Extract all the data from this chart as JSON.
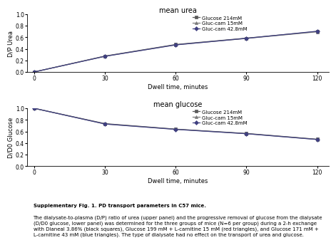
{
  "title1": "mean urea",
  "title2": "mean glucose",
  "xlabel": "Dwell time, minutes",
  "ylabel1": "D/P Urea",
  "ylabel2": "D/D0 Glucose",
  "x": [
    0,
    30,
    60,
    90,
    120
  ],
  "urea": {
    "series1": [
      0.0,
      0.275,
      0.475,
      0.585,
      0.7
    ],
    "series2": [
      0.0,
      0.272,
      0.47,
      0.58,
      0.695
    ],
    "series3": [
      0.0,
      0.27,
      0.468,
      0.582,
      0.705
    ]
  },
  "glucose": {
    "series1": [
      1.0,
      0.735,
      0.64,
      0.565,
      0.465
    ],
    "series2": [
      1.0,
      0.73,
      0.638,
      0.562,
      0.462
    ],
    "series3": [
      1.0,
      0.728,
      0.635,
      0.56,
      0.46
    ]
  },
  "legend_labels": [
    "Glucose 214mM",
    "Gluc-cam 15mM",
    "Gluc-cam 42.8mM"
  ],
  "colors": [
    "#5a5a5a",
    "#7a7a7a",
    "#404080"
  ],
  "markers": [
    "s",
    "^",
    "D"
  ],
  "marker_size": 3,
  "line_width": 0.9,
  "caption_bold": "Supplementary Fig. 1. PD transport parameters in C57 mice.",
  "caption_text": "The dialysate-to-plasma (D/P) ratio of urea (upper panel) and the progressive removal of glucose from the dialysate\n(D/D0 glucose, lower panel) was determined for the three groups of mice (N=6 per group) during a 2-h exchange\nwith Dianeal 3.86% (black squares), Glucose 199 mM + L-carnitine 15 mM (red triangles), and Glucose 171 mM +\nL-carnitine 43 mM (blue triangles). The type of dialysate had no effect on the transport of urea and glucose.",
  "ylim": [
    0.0,
    1.0
  ],
  "yticks": [
    0.0,
    0.2,
    0.4,
    0.6,
    0.8,
    1.0
  ],
  "xticks": [
    0,
    30,
    60,
    90,
    120
  ],
  "xlim": [
    -3,
    125
  ]
}
